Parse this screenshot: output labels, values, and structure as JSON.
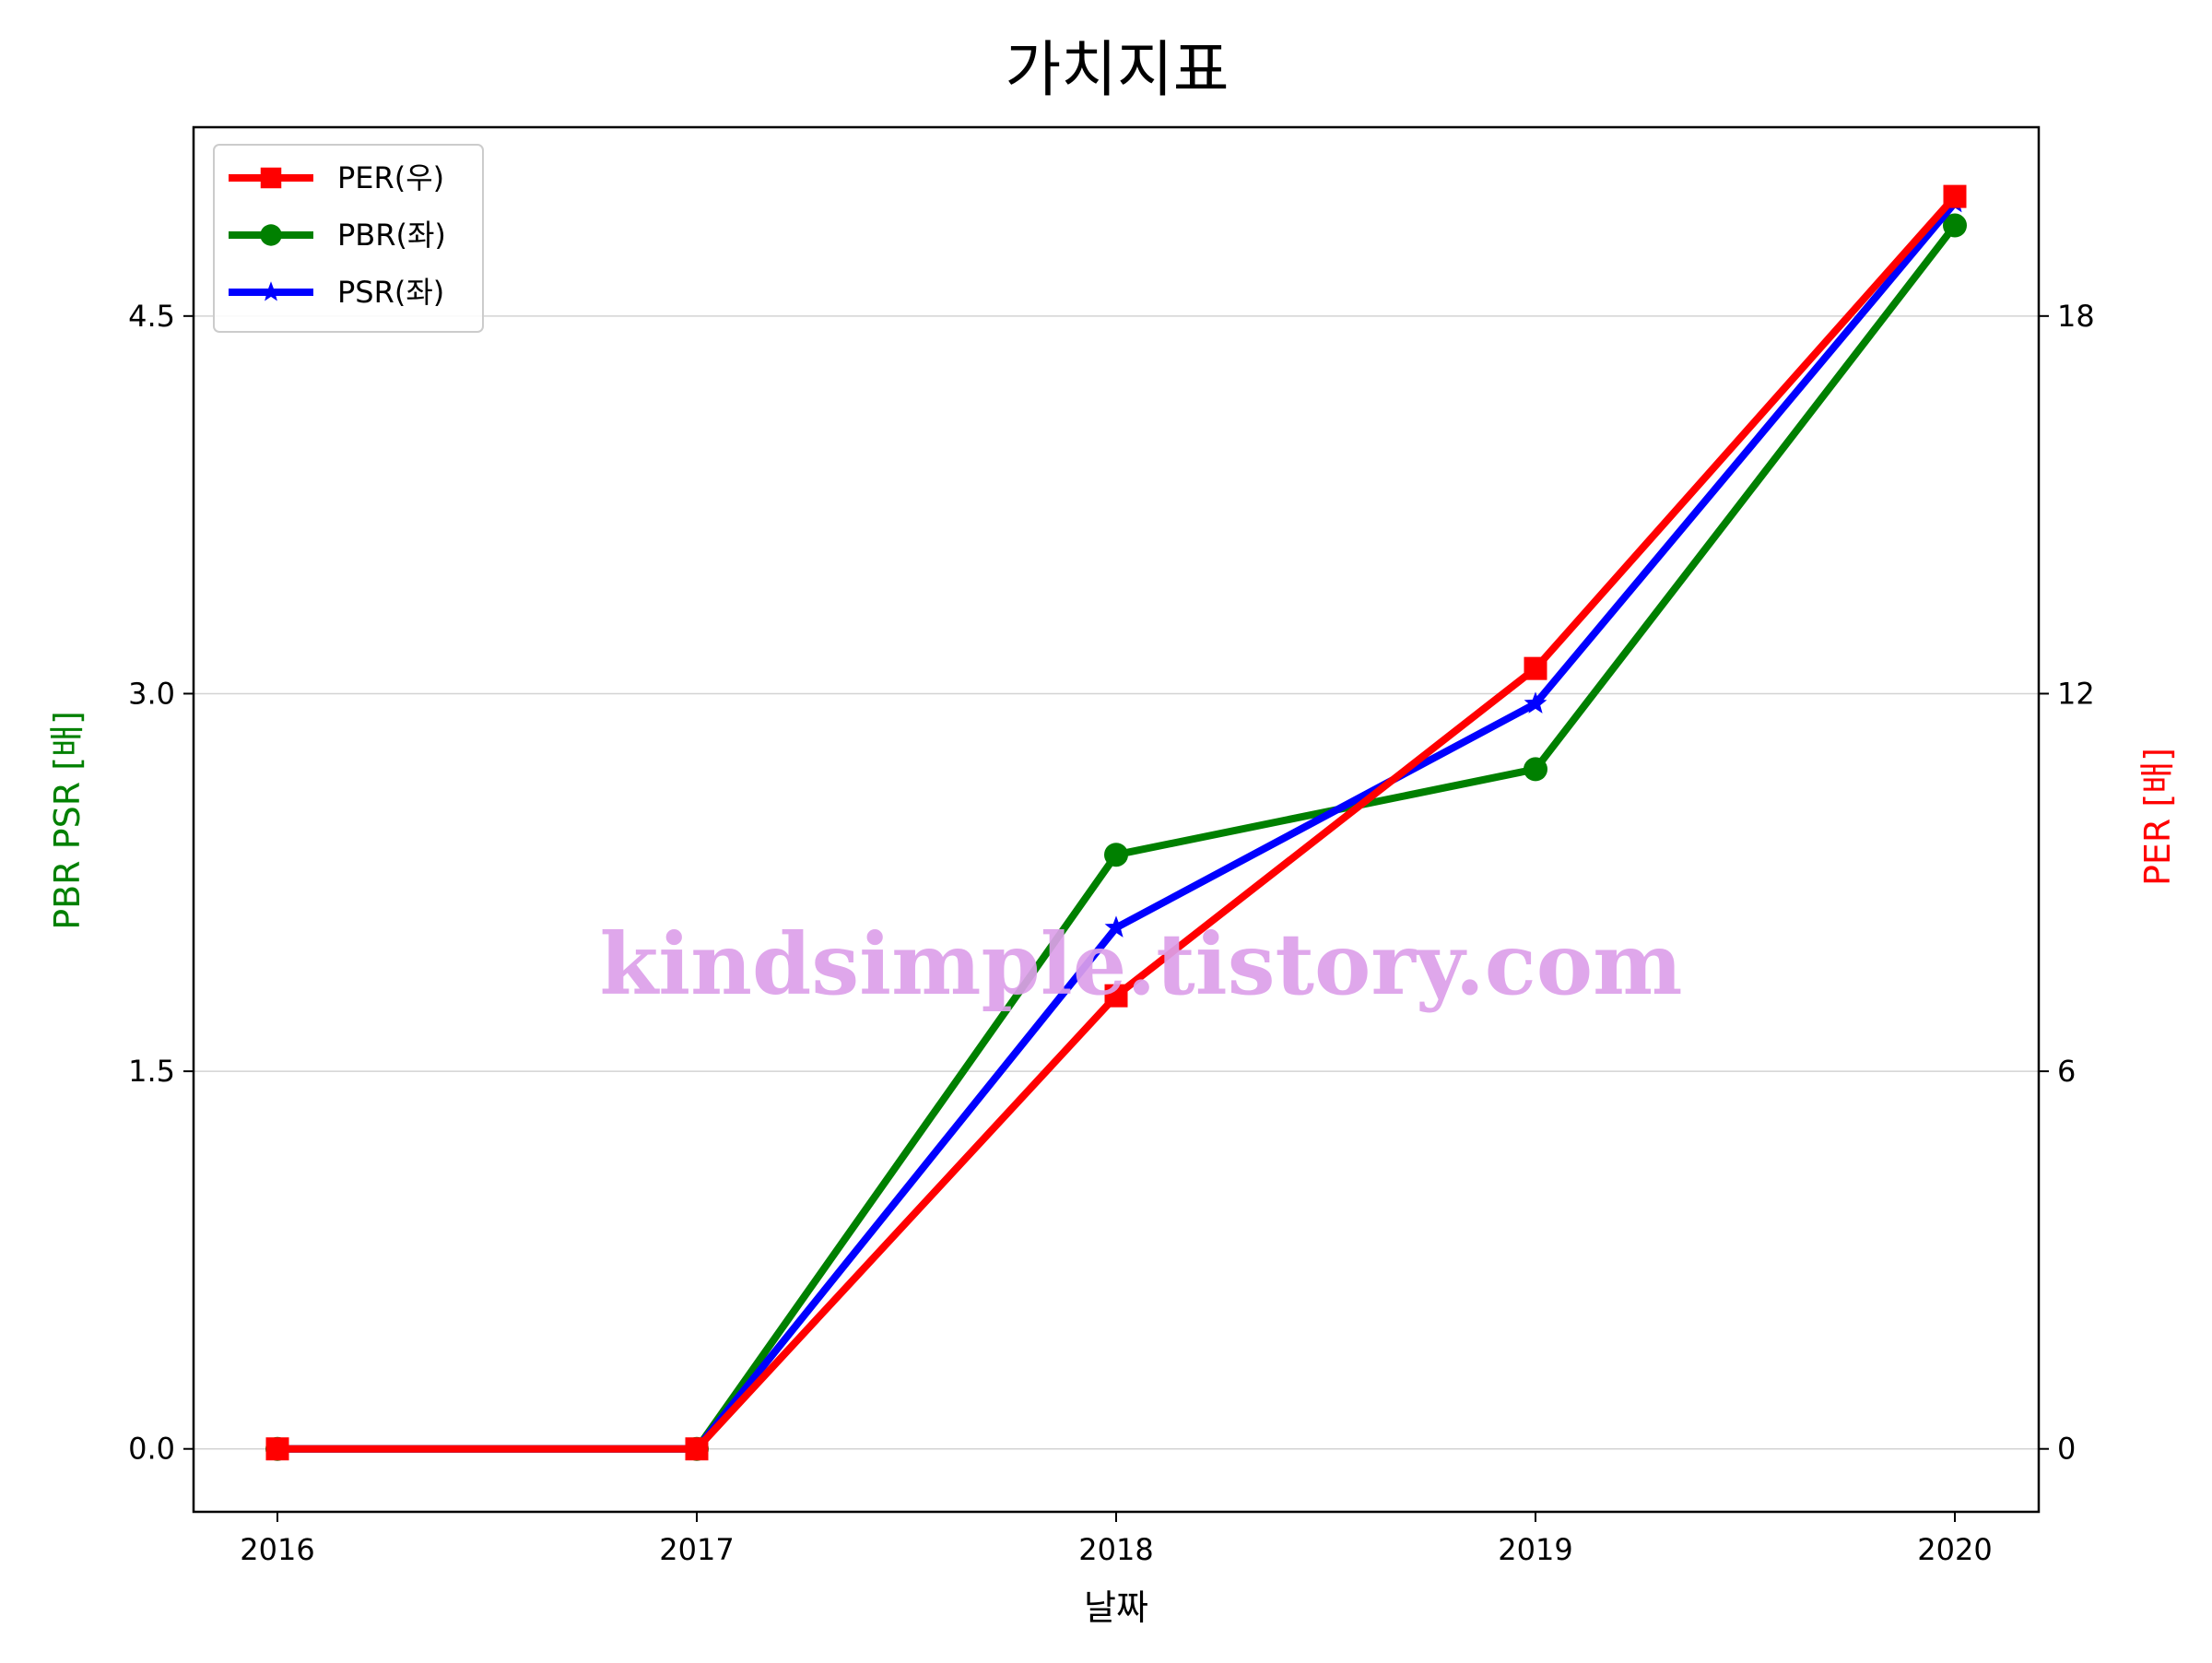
{
  "chart_data": {
    "type": "line",
    "title": "가치지표",
    "xlabel": "날짜",
    "ylabel_left": "PBR PSR [배]",
    "ylabel_right": "PER [배]",
    "categories": [
      "2016",
      "2017",
      "2018",
      "2019",
      "2020"
    ],
    "left_axis": {
      "ylim": [
        -0.25,
        5.25
      ],
      "ticks": [
        "0.0",
        "1.5",
        "3.0",
        "4.5"
      ],
      "tick_values": [
        0,
        1.5,
        3.0,
        4.5
      ],
      "color": "#008000"
    },
    "right_axis": {
      "ylim": [
        -1.0,
        21.0
      ],
      "ticks": [
        "0",
        "6",
        "12",
        "18"
      ],
      "tick_values": [
        0,
        6,
        12,
        18
      ],
      "color": "#ff0000"
    },
    "grid": "horizontal",
    "legend_position": "top-left",
    "series": [
      {
        "name": "PER(우)",
        "axis": "right",
        "color": "#ff0000",
        "marker": "square",
        "values": [
          0,
          0,
          7.2,
          12.4,
          19.9
        ]
      },
      {
        "name": "PBR(좌)",
        "axis": "left",
        "color": "#008000",
        "marker": "circle",
        "values": [
          0,
          0,
          2.36,
          2.7,
          4.86
        ]
      },
      {
        "name": "PSR(좌)",
        "axis": "left",
        "color": "#0000ff",
        "marker": "star",
        "values": [
          0,
          0,
          2.07,
          2.96,
          4.95
        ]
      }
    ]
  },
  "watermark": "kindsimple.tistory.com"
}
